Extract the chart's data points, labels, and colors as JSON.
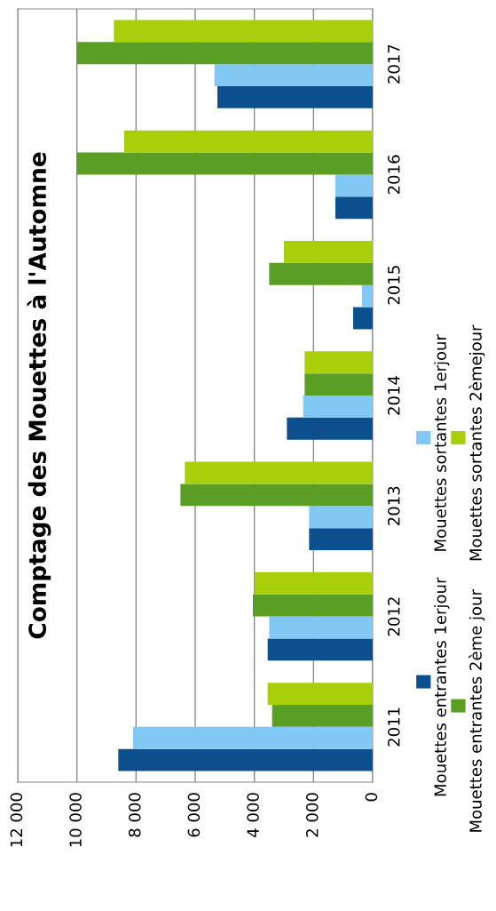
{
  "chart_data": {
    "type": "bar",
    "orientation": "horizontal",
    "title": "Comptage des Mouettes à l'Automne",
    "categories": [
      "2017",
      "2016",
      "2015",
      "2014",
      "2013",
      "2012",
      "2011"
    ],
    "series": [
      {
        "name": "Mouettes entrantes 1erjour",
        "color": "#0b4f8c",
        "values": [
          5250,
          1260,
          660,
          2900,
          2150,
          3550,
          8600
        ]
      },
      {
        "name": "Mouettes sortantes 1erjour",
        "color": "#82c8f5",
        "values": [
          5350,
          1260,
          360,
          2350,
          2150,
          3500,
          8100
        ]
      },
      {
        "name": "Mouettes entrantes 2ème jour",
        "color": "#5a9e23",
        "values": [
          10000,
          10000,
          3500,
          2300,
          6500,
          4050,
          3400
        ]
      },
      {
        "name": "Mouettes sortantes 2èmejour",
        "color": "#a9cf0a",
        "values": [
          8750,
          8400,
          3000,
          2300,
          6350,
          4000,
          3550
        ]
      }
    ],
    "xlim": [
      12000,
      0
    ],
    "xticks": [
      {
        "value": 12000,
        "label": "12 000"
      },
      {
        "value": 10000,
        "label": "10 000"
      },
      {
        "value": 8000,
        "label": "8 000"
      },
      {
        "value": 6000,
        "label": "6 000"
      },
      {
        "value": 4000,
        "label": "4 000"
      },
      {
        "value": 2000,
        "label": "2 000"
      },
      0
    ],
    "grid": "x",
    "legend": "right"
  }
}
